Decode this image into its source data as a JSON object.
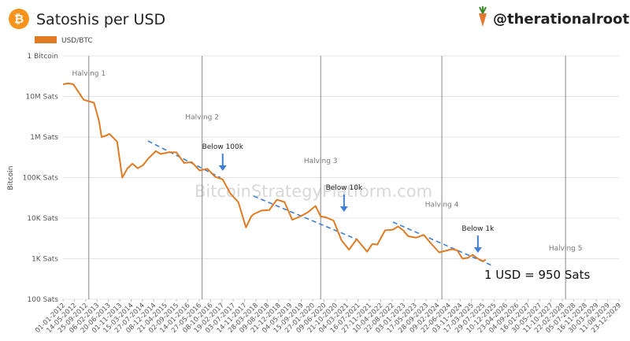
{
  "chart_data": {
    "type": "line",
    "title": "Satoshis per USD",
    "handle": "@therationalroot",
    "y_label": "Bitcoin",
    "watermark": "BitcoinStrategyPlatform.com",
    "callout": "1 USD = 950 Sats",
    "log_scale": true,
    "grid": true,
    "ylim": [
      100,
      100000000
    ],
    "yticks": [
      {
        "value": 100000000,
        "label": "1 Bitcoin"
      },
      {
        "value": 10000000,
        "label": "10M Sats"
      },
      {
        "value": 1000000,
        "label": "1M Sats"
      },
      {
        "value": 100000,
        "label": "100K Sats"
      },
      {
        "value": 10000,
        "label": "10K Sats"
      },
      {
        "value": 1000,
        "label": "1K Sats"
      },
      {
        "value": 100,
        "label": "100 Sats"
      }
    ],
    "xticks": [
      "01-01-2012",
      "14-05-2012",
      "25-09-2012",
      "06-02-2013",
      "20-06-2013",
      "01-11-2013",
      "15-03-2014",
      "27-07-2014",
      "08-12-2014",
      "21-04-2015",
      "02-09-2015",
      "14-01-2016",
      "27-05-2016",
      "08-10-2016",
      "19-02-2017",
      "03-07-2017",
      "14-11-2017",
      "28-03-2018",
      "09-08-2018",
      "21-12-2018",
      "04-05-2019",
      "15-09-2019",
      "27-01-2020",
      "09-06-2020",
      "21-10-2020",
      "04-03-2021",
      "16-07-2021",
      "27-11-2021",
      "10-04-2022",
      "22-08-2022",
      "03-01-2023",
      "17-05-2023",
      "28-09-2023",
      "09-02-2024",
      "22-06-2024",
      "03-11-2024",
      "17-03-2025",
      "29-07-2025",
      "10-12-2025",
      "23-04-2026",
      "04-09-2026",
      "16-01-2027",
      "30-05-2027",
      "11-10-2027",
      "22-02-2028",
      "05-07-2028",
      "16-11-2028",
      "30-03-2029",
      "11-08-2029",
      "23-12-2029"
    ],
    "series": [
      {
        "name": "USD/BTC",
        "color": "#e07b24",
        "x": [
          "2012-01",
          "2012-03",
          "2012-05",
          "2012-07",
          "2012-09",
          "2013-01",
          "2013-03",
          "2013-04",
          "2013-06",
          "2013-07",
          "2013-10",
          "2013-12",
          "2014-02",
          "2014-04",
          "2014-06",
          "2014-08",
          "2014-10",
          "2015-01",
          "2015-03",
          "2015-06",
          "2015-09",
          "2015-12",
          "2016-03",
          "2016-06",
          "2016-09",
          "2016-12",
          "2017-03",
          "2017-06",
          "2017-09",
          "2017-12",
          "2018-02",
          "2018-03",
          "2018-06",
          "2018-09",
          "2018-12",
          "2019-03",
          "2019-06",
          "2019-09",
          "2019-12",
          "2020-03",
          "2020-05",
          "2020-07",
          "2020-10",
          "2021-01",
          "2021-04",
          "2021-07",
          "2021-11",
          "2022-01",
          "2022-03",
          "2022-06",
          "2022-09",
          "2022-11",
          "2023-01",
          "2023-03",
          "2023-06",
          "2023-09",
          "2023-12",
          "2024-03",
          "2024-06",
          "2024-08",
          "2024-10",
          "2024-12",
          "2025-02",
          "2025-04",
          "2025-06",
          "2025-08",
          "2025-09"
        ],
        "values": [
          20000000,
          21000000,
          20000000,
          13000000,
          8300000,
          7000000,
          2500000,
          1000000,
          1100000,
          1200000,
          770000,
          100000,
          170000,
          220000,
          170000,
          200000,
          290000,
          450000,
          380000,
          420000,
          420000,
          230000,
          240000,
          150000,
          165000,
          105000,
          90000,
          40000,
          25000,
          5900,
          11000,
          12500,
          15400,
          15800,
          28500,
          25000,
          9100,
          11000,
          13900,
          20000,
          11000,
          10500,
          8700,
          2860,
          1670,
          3030,
          1490,
          2300,
          2220,
          5000,
          5200,
          6250,
          5000,
          3570,
          3300,
          3850,
          2300,
          1430,
          1600,
          1720,
          1600,
          1000,
          1050,
          1250,
          1000,
          870,
          950
        ]
      }
    ],
    "trend_lines": [
      {
        "x": [
          "2014-10",
          "2017-02"
        ],
        "values": [
          800000,
          100000
        ]
      },
      {
        "x": [
          "2018-03",
          "2021-07"
        ],
        "values": [
          35000,
          3000
        ]
      },
      {
        "x": [
          "2022-09",
          "2025-11"
        ],
        "values": [
          8000,
          700
        ]
      }
    ],
    "halvings": [
      {
        "label": "Halving 1",
        "date": "2012-11"
      },
      {
        "label": "Halving 2",
        "date": "2016-07"
      },
      {
        "label": "Halving 3",
        "date": "2020-05"
      },
      {
        "label": "Halving 4",
        "date": "2024-04"
      },
      {
        "label": "Halving 5",
        "date": "2028-04"
      }
    ],
    "annotations": [
      {
        "text": "Below 100k",
        "date": "2017-03"
      },
      {
        "text": "Below 10k",
        "date": "2021-02"
      },
      {
        "text": "Below 1k",
        "date": "2025-06"
      }
    ]
  }
}
